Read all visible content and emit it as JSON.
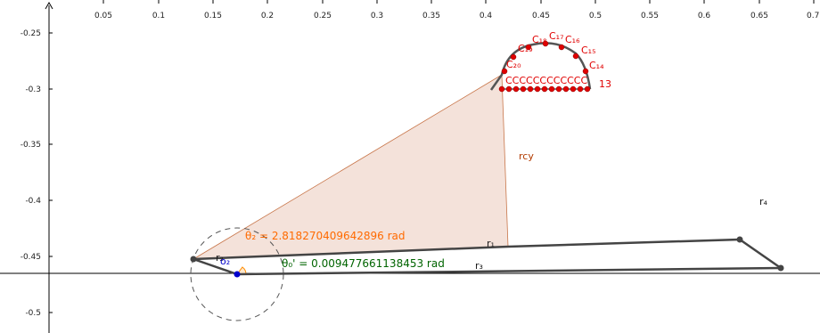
{
  "graphics_view": {
    "x_ticks": [
      "0.05",
      "0.1",
      "0.15",
      "0.2",
      "0.25",
      "0.3",
      "0.35",
      "0.4",
      "0.45",
      "0.5",
      "0.55",
      "0.6",
      "0.65",
      "0.7"
    ],
    "y_ticks": [
      "-0.25",
      "-0.3",
      "-0.35",
      "-0.4",
      "-0.45",
      "-0.5"
    ]
  },
  "labels": {
    "theta2": "θ₂ = 2.818270409642896 rad",
    "theta0": "θ₀' = 0.009477661138453 rad",
    "rcy": "rcy",
    "r1": "r₁",
    "r2": "r₂",
    "r3": "r₃",
    "r4": "r₄",
    "c_row": "CCCCCCCCCCCC",
    "c_row_tail": "13",
    "c14": "C₁₄",
    "c15": "C₁₅",
    "c16": "C₁₆",
    "c17": "C₁₇",
    "c18": "C₁₈",
    "c19": "C₁₉",
    "c20": "C₂₀",
    "small_o2": "o₂"
  },
  "colors": {
    "axis": "#000000",
    "polygon_fill": "#f4e2da",
    "polygon_stroke": "#c8764a",
    "links": "#444444",
    "points_red": "#e00000",
    "point_blue": "#0000cc",
    "theta2": "#ff6a00",
    "theta0": "#006400"
  }
}
